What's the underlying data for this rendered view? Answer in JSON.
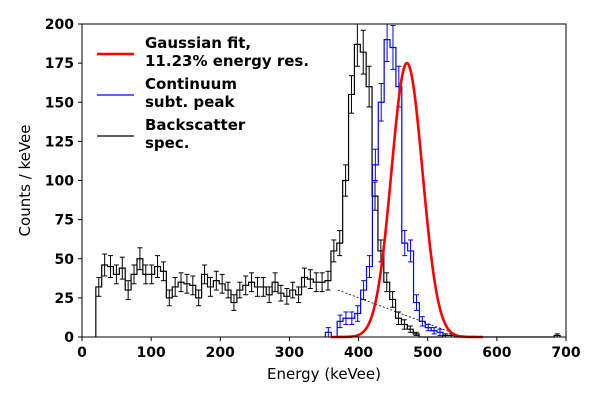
{
  "chart_data": {
    "type": "histogram",
    "xlabel": "Energy (keVee)",
    "ylabel": "Counts / keVee",
    "xlim": [
      0,
      700
    ],
    "ylim": [
      0,
      200
    ],
    "xticks": [
      "0",
      "100",
      "200",
      "300",
      "400",
      "500",
      "600",
      "700"
    ],
    "yticks": [
      "0",
      "25",
      "50",
      "75",
      "100",
      "125",
      "150",
      "175",
      "200"
    ],
    "grid": false,
    "legend_position": "top-left",
    "legend": [
      {
        "line1": "Gaussian fit,",
        "line2": "11.23% energy res.",
        "color": "#ff0000"
      },
      {
        "line1": "Continuum",
        "line2": "subt. peak",
        "color": "#0000ff"
      },
      {
        "line1": "Backscatter",
        "line2": "spec.",
        "color": "#000000"
      }
    ],
    "bin_width": 8.5,
    "backscatter": {
      "name": "Backscatter spec.",
      "color": "#000000",
      "bin_start": 20,
      "values": [
        32,
        46,
        45,
        40,
        44,
        30,
        40,
        50,
        40,
        40,
        45,
        42,
        25,
        32,
        35,
        34,
        33,
        25,
        40,
        32,
        36,
        34,
        30,
        22,
        30,
        33,
        35,
        32,
        32,
        27,
        35,
        28,
        26,
        30,
        27,
        38,
        37,
        35,
        35,
        36,
        55,
        60,
        100,
        155,
        187,
        182,
        160,
        90,
        55,
        35,
        24,
        12,
        8,
        5,
        2,
        0,
        0,
        0,
        0,
        1,
        1,
        0,
        0,
        0,
        0,
        0,
        0,
        0,
        0,
        0,
        0,
        0,
        0,
        0,
        0,
        0,
        0,
        0,
        1
      ],
      "errors": [
        6,
        7,
        7,
        6,
        7,
        6,
        6,
        7,
        6,
        6,
        7,
        6,
        5,
        6,
        6,
        6,
        6,
        5,
        6,
        6,
        6,
        6,
        5,
        5,
        5,
        6,
        6,
        6,
        6,
        5,
        6,
        5,
        5,
        5,
        5,
        6,
        6,
        6,
        6,
        6,
        7,
        8,
        10,
        12,
        14,
        14,
        13,
        9,
        7,
        6,
        5,
        4,
        3,
        2,
        1,
        0,
        0,
        0,
        0,
        1,
        1,
        0,
        0,
        0,
        0,
        0,
        0,
        0,
        0,
        0,
        0,
        0,
        0,
        0,
        0,
        0,
        0,
        0,
        1
      ]
    },
    "continuum_subtracted": {
      "name": "Continuum subt. peak",
      "color": "#0000ff",
      "bin_start": 352,
      "values": [
        3,
        0,
        10,
        12,
        12,
        15,
        30,
        45,
        110,
        150,
        190,
        185,
        160,
        60,
        55,
        22,
        10,
        6,
        4,
        3
      ],
      "errors": [
        3,
        0,
        4,
        4,
        4,
        5,
        6,
        7,
        10,
        12,
        14,
        14,
        13,
        8,
        7,
        5,
        3,
        2,
        2,
        2
      ]
    },
    "continuum_line": {
      "x": [
        370,
        540
      ],
      "y": [
        30,
        2
      ]
    },
    "gaussian_fit": {
      "name": "Gaussian fit",
      "color": "#ff0000",
      "mean": 470,
      "sigma": 22.4,
      "amplitude": 175
    }
  }
}
